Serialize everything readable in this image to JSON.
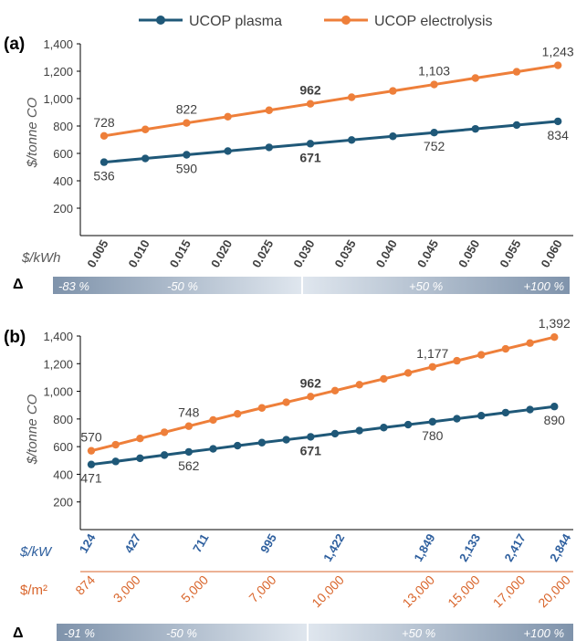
{
  "legend": [
    {
      "name": "UCOP plasma",
      "color": "#1f5878"
    },
    {
      "name": "UCOP electrolysis",
      "color": "#ee7f3a"
    }
  ],
  "colors": {
    "plasma": "#1f5878",
    "electrolysis": "#ee7f3a",
    "kw_axis": "#2e5f9e",
    "m2_axis": "#d9652b",
    "grid": "#000000",
    "delta_light": "#c8d4e0",
    "delta_dark": "#7f93ab"
  },
  "chart_data": [
    {
      "type": "line",
      "panel_label": "(a)",
      "ylabel": "$/tonne CO",
      "xaxis_label": "$/kWh",
      "ylim": [
        0,
        1400
      ],
      "yticks": [
        "200",
        "400",
        "600",
        "800",
        "1,000",
        "1,200",
        "1,400"
      ],
      "categories": [
        "0.005",
        "0.010",
        "0.015",
        "0.020",
        "0.025",
        "0.030",
        "0.035",
        "0.040",
        "0.045",
        "0.050",
        "0.055",
        "0.060"
      ],
      "series": [
        {
          "name": "UCOP plasma",
          "values": [
            536,
            563,
            590,
            617,
            644,
            671,
            698,
            725,
            752,
            779,
            807,
            834
          ],
          "labels": [
            {
              "i": 0,
              "text": "536"
            },
            {
              "i": 2,
              "text": "590"
            },
            {
              "i": 5,
              "text": "671",
              "bold": true
            },
            {
              "i": 8,
              "text": "752"
            },
            {
              "i": 11,
              "text": "834"
            }
          ]
        },
        {
          "name": "UCOP electrolysis",
          "values": [
            728,
            775,
            822,
            868,
            915,
            962,
            1010,
            1056,
            1103,
            1150,
            1196,
            1243
          ],
          "labels": [
            {
              "i": 0,
              "text": "728"
            },
            {
              "i": 2,
              "text": "822"
            },
            {
              "i": 5,
              "text": "962",
              "bold": true
            },
            {
              "i": 8,
              "text": "1,103"
            },
            {
              "i": 11,
              "text": "1,243"
            }
          ]
        }
      ],
      "delta": {
        "symbol": "Δ",
        "labels": [
          "-83 %",
          "-50 %",
          "+50 %",
          "+100 %"
        ]
      }
    },
    {
      "type": "line",
      "panel_label": "(b)",
      "ylabel": "$/tonne CO",
      "ylim": [
        0,
        1400
      ],
      "yticks": [
        "200",
        "400",
        "600",
        "800",
        "1,000",
        "1,200",
        "1,400"
      ],
      "x_count": 20,
      "xaxis_kw": {
        "label": "$/kW",
        "ticks": [
          "124",
          "427",
          "711",
          "995",
          "1,422",
          "1,849",
          "2,133",
          "2,417",
          "2,844"
        ],
        "positions": [
          0,
          2,
          5,
          8,
          11,
          15,
          17,
          19,
          21
        ]
      },
      "xaxis_m2": {
        "label": "$/m²",
        "ticks": [
          "874",
          "3,000",
          "5,000",
          "7,000",
          "10,000",
          "13,000",
          "15,000",
          "17,000",
          "20,000"
        ],
        "positions": [
          0,
          2,
          5,
          8,
          11,
          15,
          17,
          19,
          21
        ]
      },
      "series": [
        {
          "name": "UCOP plasma",
          "values": [
            471,
            493,
            516,
            539,
            562,
            584,
            607,
            629,
            650,
            671,
            694,
            716,
            738,
            759,
            780,
            802,
            824,
            846,
            868,
            890
          ],
          "labels": [
            {
              "i": 0,
              "text": "471"
            },
            {
              "i": 4,
              "text": "562"
            },
            {
              "i": 9,
              "text": "671",
              "bold": true
            },
            {
              "i": 14,
              "text": "780"
            },
            {
              "i": 19,
              "text": "890"
            }
          ]
        },
        {
          "name": "UCOP electrolysis",
          "values": [
            570,
            614,
            659,
            704,
            748,
            793,
            837,
            880,
            921,
            962,
            1005,
            1048,
            1090,
            1133,
            1177,
            1221,
            1264,
            1307,
            1349,
            1392
          ],
          "labels": [
            {
              "i": 0,
              "text": "570"
            },
            {
              "i": 4,
              "text": "748"
            },
            {
              "i": 9,
              "text": "962",
              "bold": true
            },
            {
              "i": 14,
              "text": "1,177"
            },
            {
              "i": 19,
              "text": "1,392"
            }
          ]
        }
      ],
      "delta": {
        "symbol": "Δ",
        "labels": [
          "-91 %",
          "-50 %",
          "+50 %",
          "+100 %"
        ]
      }
    }
  ]
}
